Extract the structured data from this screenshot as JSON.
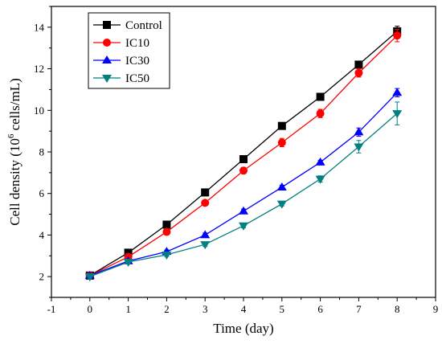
{
  "chart_data": {
    "type": "line",
    "xlabel": "Time (day)",
    "ylabel": "Cell density (10^6 cells/mL)",
    "ylabel_parts": {
      "before": "Cell density (10",
      "sup": "6",
      "after": " cells/mL)"
    },
    "xlim": [
      -1,
      9
    ],
    "ylim": [
      1,
      15
    ],
    "x_ticks": [
      "-1",
      "0",
      "1",
      "2",
      "3",
      "4",
      "5",
      "6",
      "7",
      "8",
      "9"
    ],
    "y_ticks": [
      "2",
      "4",
      "6",
      "8",
      "10",
      "12",
      "14"
    ],
    "grid": false,
    "legend_position": "top-left",
    "x": [
      0,
      1,
      2,
      3,
      4,
      5,
      6,
      7,
      8
    ],
    "series": [
      {
        "name": "Control",
        "color": "#000000",
        "marker": "square",
        "values": [
          2.05,
          3.15,
          4.5,
          6.05,
          7.65,
          9.25,
          10.65,
          12.2,
          13.8
        ],
        "errors": [
          0.05,
          0.05,
          0.08,
          0.1,
          0.1,
          0.1,
          0.1,
          0.15,
          0.25
        ]
      },
      {
        "name": "IC10",
        "color": "#ff0000",
        "marker": "circle",
        "values": [
          2.05,
          2.95,
          4.15,
          5.55,
          7.1,
          8.45,
          9.85,
          11.8,
          13.6
        ],
        "errors": [
          0.05,
          0.1,
          0.1,
          0.1,
          0.15,
          0.2,
          0.2,
          0.2,
          0.3
        ]
      },
      {
        "name": "IC30",
        "color": "#0000ff",
        "marker": "triangle-up",
        "values": [
          2.05,
          2.75,
          3.2,
          4.0,
          5.15,
          6.3,
          7.5,
          8.95,
          10.85
        ],
        "errors": [
          0.05,
          0.05,
          0.08,
          0.1,
          0.1,
          0.1,
          0.1,
          0.2,
          0.2
        ]
      },
      {
        "name": "IC50",
        "color": "#008080",
        "marker": "triangle-down",
        "values": [
          2.0,
          2.7,
          3.05,
          3.55,
          4.45,
          5.5,
          6.7,
          8.25,
          9.85
        ],
        "errors": [
          0.05,
          0.05,
          0.08,
          0.1,
          0.1,
          0.1,
          0.15,
          0.3,
          0.55
        ]
      }
    ]
  }
}
